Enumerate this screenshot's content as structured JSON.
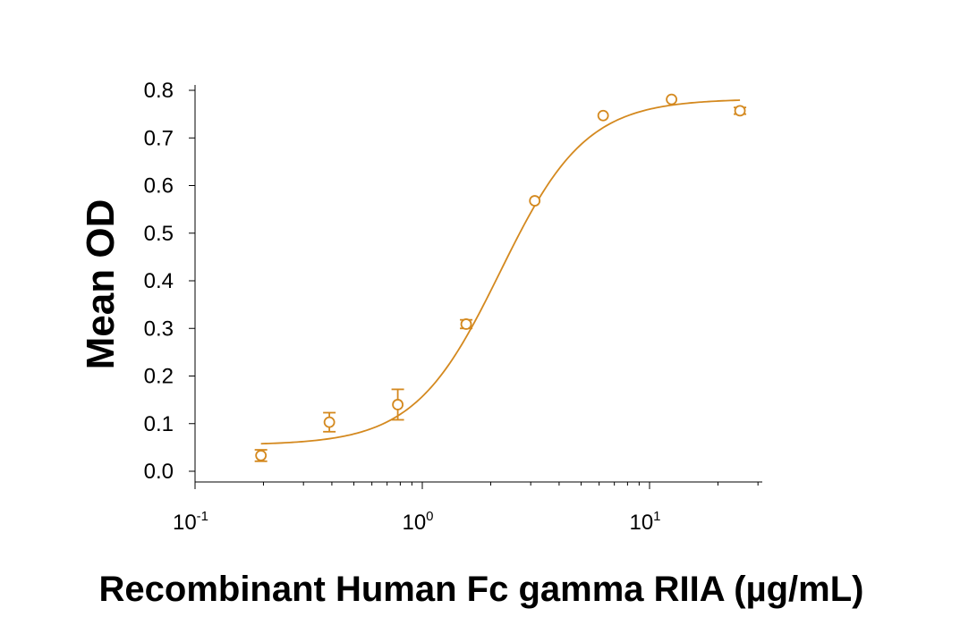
{
  "chart_data": {
    "type": "scatter",
    "title": "",
    "xlabel": "Recombinant Human Fc gamma RIIA (µg/mL)",
    "ylabel": "Mean OD",
    "x_scale": "log10",
    "xlim": [
      0.1,
      30
    ],
    "ylim": [
      0.0,
      0.8
    ],
    "x_ticks": [
      {
        "base": "10",
        "exp": "-1"
      },
      {
        "base": "10",
        "exp": "0"
      },
      {
        "base": "10",
        "exp": "1"
      }
    ],
    "y_ticks": [
      "0.0",
      "0.1",
      "0.2",
      "0.3",
      "0.4",
      "0.5",
      "0.6",
      "0.7",
      "0.8"
    ],
    "color": "#d4891f",
    "points": [
      {
        "x": 0.195,
        "y": 0.033,
        "err": 0.012
      },
      {
        "x": 0.39,
        "y": 0.103,
        "err": 0.02
      },
      {
        "x": 0.78,
        "y": 0.14,
        "err": 0.032
      },
      {
        "x": 1.56,
        "y": 0.309,
        "err": 0.009
      },
      {
        "x": 3.125,
        "y": 0.568,
        "err": 0
      },
      {
        "x": 6.25,
        "y": 0.747,
        "err": 0
      },
      {
        "x": 12.5,
        "y": 0.781,
        "err": 0
      },
      {
        "x": 25,
        "y": 0.757,
        "err": 0.007
      }
    ],
    "fit_curve": {
      "model": "4PL",
      "bottom": 0.055,
      "top": 0.782,
      "ec50": 2.2,
      "hill": 2.3,
      "x_range": [
        0.195,
        25
      ]
    },
    "grid": false,
    "legend": "none"
  }
}
